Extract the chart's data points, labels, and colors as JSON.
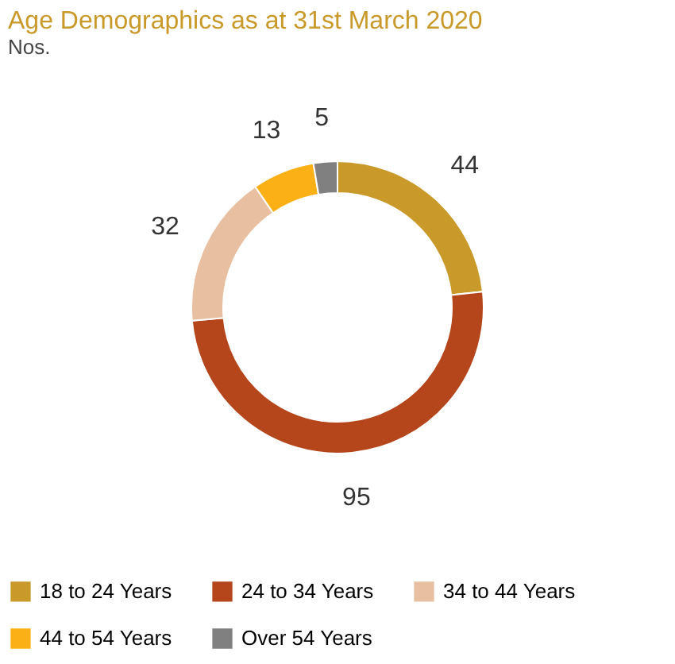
{
  "chart_data": {
    "type": "donut",
    "title": "Age Demographics as at 31st March 2020",
    "subtitle": "Nos.",
    "categories": [
      "18 to 24 Years",
      "24 to 34 Years",
      "34 to 44 Years",
      "44 to 54 Years",
      "Over 54 Years"
    ],
    "values": [
      44,
      95,
      32,
      13,
      5
    ],
    "colors": [
      "#c9992a",
      "#b5451b",
      "#e8bfa0",
      "#fbb016",
      "#808080"
    ],
    "data_labels": true,
    "legend": "bottom"
  }
}
